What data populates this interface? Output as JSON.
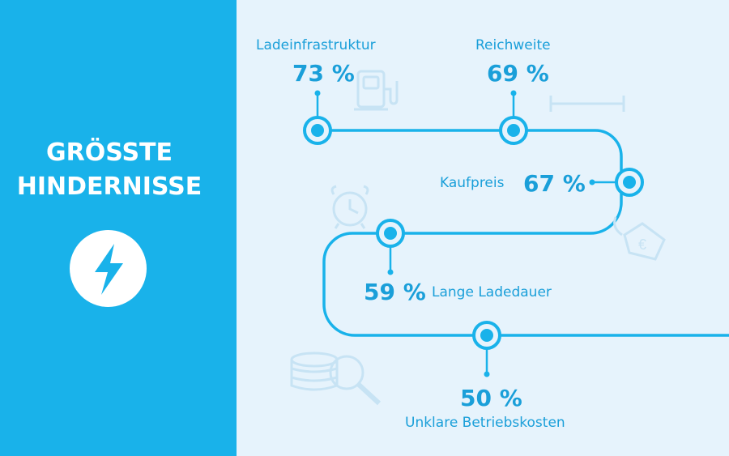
{
  "colors": {
    "accent": "#19b2ea",
    "text": "#1a9fd9",
    "background": "#e6f3fc",
    "icon_faded": "#c7e3f4"
  },
  "sidebar": {
    "title_line1": "GRÖSSTE",
    "title_line2": "HINDERNISSE",
    "icon": "lightning-bolt-icon"
  },
  "obstacles": [
    {
      "label": "Ladeinfrastruktur",
      "value": "73 %",
      "icon": "charging-station-icon"
    },
    {
      "label": "Reichweite",
      "value": "69 %",
      "icon": "range-ruler-icon"
    },
    {
      "label": "Kaufpreis",
      "value": "67 %",
      "icon": "price-tag-euro-icon",
      "icon_text": "€"
    },
    {
      "label": "Lange Ladedauer",
      "value": "59 %",
      "icon": "alarm-clock-icon"
    },
    {
      "label": "Unklare Betriebskosten",
      "value": "50 %",
      "icon": "coins-magnifier-icon"
    }
  ]
}
